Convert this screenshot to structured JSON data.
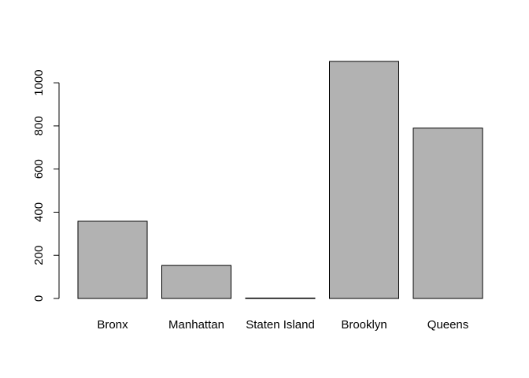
{
  "chart_data": {
    "type": "bar",
    "categories": [
      "Bronx",
      "Manhattan",
      "Staten Island",
      "Brooklyn",
      "Queens"
    ],
    "values": [
      358,
      153,
      2,
      1099,
      790
    ],
    "yticks": [
      0,
      200,
      400,
      600,
      800,
      1000
    ],
    "ylim": [
      0,
      1099
    ],
    "title": "",
    "xlabel": "",
    "ylabel": "",
    "bar_color": "#b2b2b2",
    "grid": false,
    "legend": "none"
  }
}
